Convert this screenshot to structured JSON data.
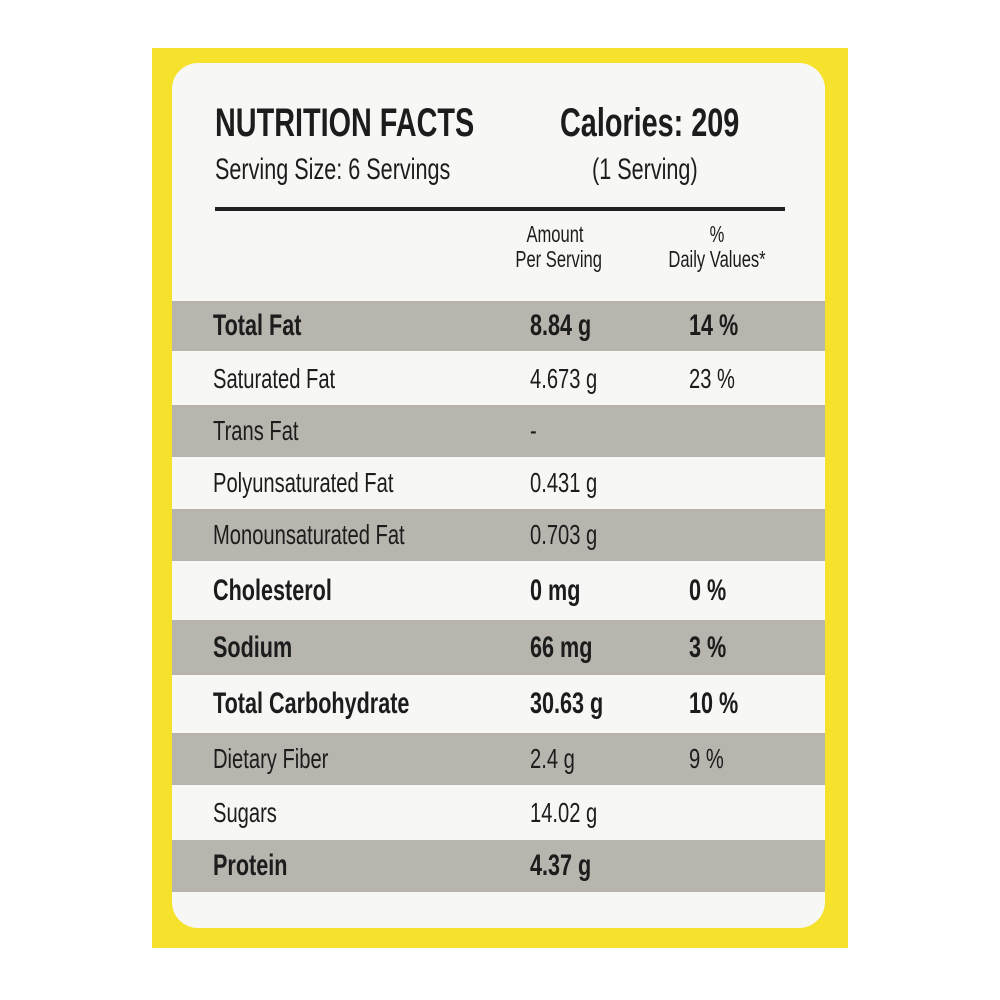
{
  "header": {
    "title": "NUTRITION FACTS",
    "calories": "Calories: 209",
    "serving_size": "Serving Size: 6 Servings",
    "per_serving": "(1 Serving)"
  },
  "columns": {
    "amount_line1": "Amount",
    "amount_line2": "Per Serving",
    "dv_line1": "%",
    "dv_line2": "Daily Values*"
  },
  "rows": [
    {
      "name": "Total Fat",
      "amount": "8.84 g",
      "dv": "14 %",
      "bold": true,
      "shaded": true
    },
    {
      "name": "Saturated Fat",
      "amount": "4.673 g",
      "dv": "23 %",
      "bold": false,
      "shaded": false
    },
    {
      "name": "Trans Fat",
      "amount": "-",
      "dv": "",
      "bold": false,
      "shaded": true
    },
    {
      "name": "Polyunsaturated Fat",
      "amount": "0.431 g",
      "dv": "",
      "bold": false,
      "shaded": false
    },
    {
      "name": "Monounsaturated Fat",
      "amount": "0.703 g",
      "dv": "",
      "bold": false,
      "shaded": true
    },
    {
      "name": "Cholesterol",
      "amount": "0 mg",
      "dv": "0 %",
      "bold": true,
      "shaded": false
    },
    {
      "name": "Sodium",
      "amount": "66 mg",
      "dv": "3 %",
      "bold": true,
      "shaded": true
    },
    {
      "name": "Total Carbohydrate",
      "amount": "30.63 g",
      "dv": "10 %",
      "bold": true,
      "shaded": false
    },
    {
      "name": "Dietary Fiber",
      "amount": "2.4 g",
      "dv": "9 %",
      "bold": false,
      "shaded": true
    },
    {
      "name": "Sugars",
      "amount": "14.02 g",
      "dv": "",
      "bold": false,
      "shaded": false
    },
    {
      "name": "Protein",
      "amount": "4.37 g",
      "dv": "",
      "bold": true,
      "shaded": true
    }
  ],
  "colors": {
    "frame": "#f6e22c",
    "shade": "#b7b5ae"
  }
}
